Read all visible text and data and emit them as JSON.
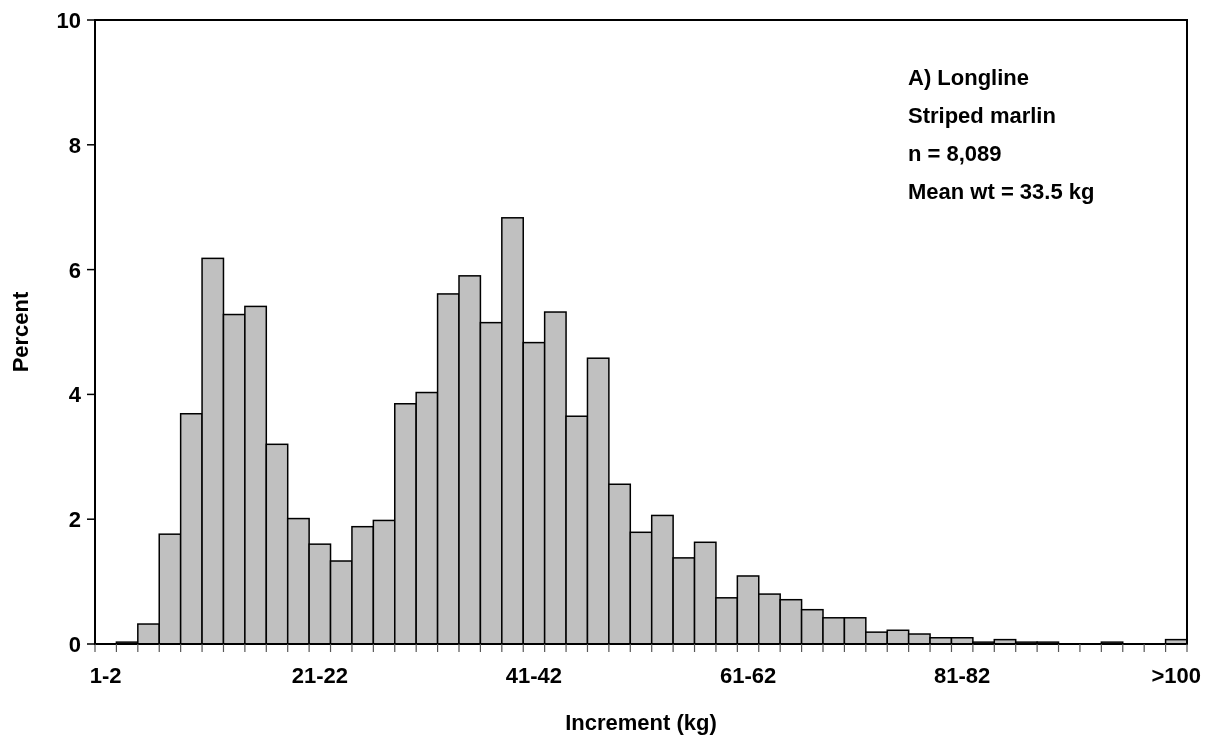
{
  "chart_data": {
    "type": "bar",
    "xlabel": "Increment (kg)",
    "ylabel": "Percent",
    "categories": [
      "1-2",
      null,
      null,
      null,
      null,
      null,
      null,
      null,
      null,
      null,
      "21-22",
      null,
      null,
      null,
      null,
      null,
      null,
      null,
      null,
      null,
      "41-42",
      null,
      null,
      null,
      null,
      null,
      null,
      null,
      null,
      null,
      "61-62",
      null,
      null,
      null,
      null,
      null,
      null,
      null,
      null,
      null,
      "81-82",
      null,
      null,
      null,
      null,
      null,
      null,
      null,
      null,
      null,
      ">100"
    ],
    "values": [
      0,
      0.03,
      0.32,
      1.76,
      3.69,
      6.18,
      5.28,
      5.41,
      3.2,
      2.01,
      1.6,
      1.33,
      1.88,
      1.98,
      3.85,
      4.03,
      5.61,
      5.9,
      5.15,
      6.83,
      4.83,
      5.32,
      3.65,
      4.58,
      2.56,
      1.79,
      2.06,
      1.38,
      1.63,
      0.74,
      1.09,
      0.8,
      0.71,
      0.55,
      0.42,
      0.42,
      0.19,
      0.22,
      0.16,
      0.1,
      0.1,
      0.03,
      0.07,
      0.03,
      0.03,
      0,
      0,
      0.03,
      0,
      0,
      0.07
    ],
    "color": "#c0c0c0",
    "ylim": [
      0,
      10
    ],
    "yticks": [
      0,
      2,
      4,
      6,
      8,
      10
    ],
    "grid": false,
    "annotations": [
      "A) Longline",
      "Striped marlin",
      "n = 8,089",
      "Mean wt = 33.5 kg"
    ]
  }
}
